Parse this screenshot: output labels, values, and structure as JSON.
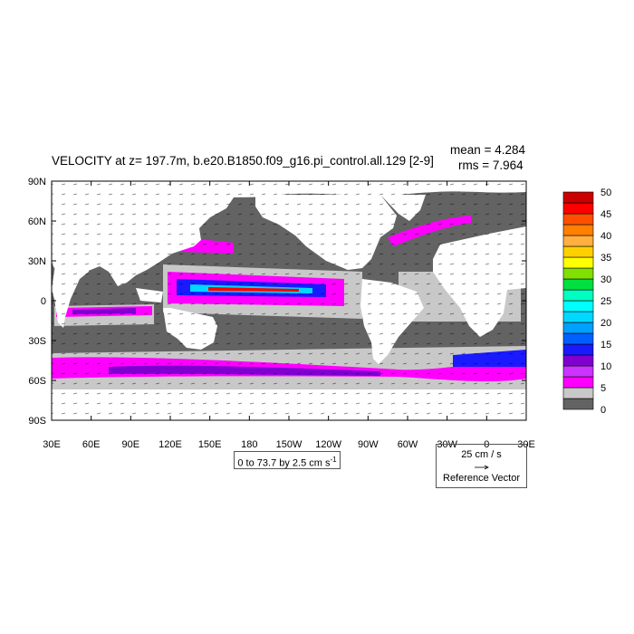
{
  "chart_data": {
    "type": "heatmap",
    "title": "VELOCITY at z= 197.7m, b.e20.B1850.f09_g16.pi_control.all.129 [2-9]",
    "stats": {
      "mean_label": "mean = 4.284",
      "rms_label": "rms = 7.964"
    },
    "xlim": [
      30,
      390
    ],
    "ylim": [
      -90,
      90
    ],
    "x_ticks": [
      {
        "value": 30,
        "label": "30E"
      },
      {
        "value": 60,
        "label": "60E"
      },
      {
        "value": 90,
        "label": "90E"
      },
      {
        "value": 120,
        "label": "120E"
      },
      {
        "value": 150,
        "label": "150E"
      },
      {
        "value": 180,
        "label": "180"
      },
      {
        "value": 210,
        "label": "150W"
      },
      {
        "value": 240,
        "label": "120W"
      },
      {
        "value": 270,
        "label": "90W"
      },
      {
        "value": 300,
        "label": "60W"
      },
      {
        "value": 330,
        "label": "30W"
      },
      {
        "value": 360,
        "label": "0"
      },
      {
        "value": 390,
        "label": "30E"
      }
    ],
    "y_ticks": [
      {
        "value": 90,
        "label": "90N"
      },
      {
        "value": 60,
        "label": "60N"
      },
      {
        "value": 30,
        "label": "30N"
      },
      {
        "value": 0,
        "label": "0"
      },
      {
        "value": -30,
        "label": "30S"
      },
      {
        "value": -60,
        "label": "60S"
      },
      {
        "value": -90,
        "label": "90S"
      }
    ],
    "colorbar": {
      "levels": [
        0,
        2.5,
        5,
        7.5,
        10,
        12.5,
        15,
        17.5,
        20,
        22.5,
        25,
        27.5,
        30,
        32.5,
        35,
        37.5,
        40,
        42.5,
        45,
        47.5,
        50
      ],
      "labels": [
        {
          "value": 0,
          "label": "0"
        },
        {
          "value": 5,
          "label": "5"
        },
        {
          "value": 10,
          "label": "10"
        },
        {
          "value": 15,
          "label": "15"
        },
        {
          "value": 20,
          "label": "20"
        },
        {
          "value": 25,
          "label": "25"
        },
        {
          "value": 30,
          "label": "30"
        },
        {
          "value": 35,
          "label": "35"
        },
        {
          "value": 40,
          "label": "40"
        },
        {
          "value": 45,
          "label": "45"
        },
        {
          "value": 50,
          "label": "50"
        }
      ],
      "colors": [
        "#636363",
        "#c8c8c8",
        "#ff00ff",
        "#cc33ff",
        "#8000d0",
        "#1a1aff",
        "#0060ff",
        "#00a0ff",
        "#00d8ff",
        "#00ffff",
        "#00ffc0",
        "#00e040",
        "#80e000",
        "#ffff00",
        "#ffd000",
        "#ffb040",
        "#ff8000",
        "#ff5000",
        "#ff0000",
        "#cc0000"
      ]
    },
    "contour_interval_label": "0 to 73.7 by 2.5 cm s",
    "contour_interval_unit_exp": "-1",
    "reference_vector": {
      "speed_label": "25 cm / s",
      "label": "Reference Vector"
    },
    "colors": {
      "land": "#ffffff",
      "ocean_low": "#636363",
      "ocean_mid": "#c8c8c8"
    }
  }
}
